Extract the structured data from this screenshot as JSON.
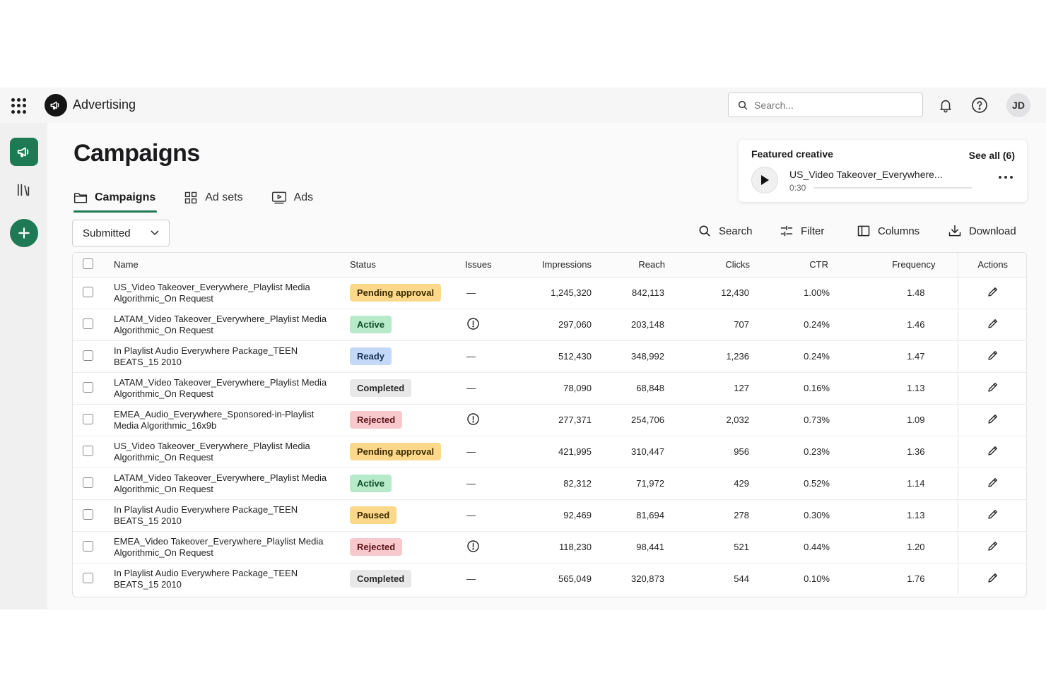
{
  "app": {
    "name": "Advertising"
  },
  "header": {
    "search_placeholder": "Search...",
    "avatar_initials": "JD"
  },
  "page": {
    "title": "Campaigns"
  },
  "tabs": [
    {
      "label": "Campaigns",
      "icon": "folder-icon",
      "active": true
    },
    {
      "label": "Ad sets",
      "icon": "grid-icon",
      "active": false
    },
    {
      "label": "Ads",
      "icon": "play-box-icon",
      "active": false
    }
  ],
  "filter": {
    "selected": "Submitted"
  },
  "toolbar": {
    "search": "Search",
    "filter": "Filter",
    "columns": "Columns",
    "download": "Download"
  },
  "featured": {
    "title": "Featured creative",
    "see_all": "See all (6)",
    "name": "US_Video Takeover_Everywhere...",
    "duration": "0:30"
  },
  "table": {
    "columns": [
      "Name",
      "Status",
      "Issues",
      "Impressions",
      "Reach",
      "Clicks",
      "CTR",
      "Frequency",
      "Actions"
    ],
    "status_colors": {
      "Pending approval": {
        "bg": "#fcd88a",
        "fg": "#3a2a00"
      },
      "Active": {
        "bg": "#b6eac8",
        "fg": "#0f4d2a"
      },
      "Ready": {
        "bg": "#c4d8f7",
        "fg": "#1c3559"
      },
      "Completed": {
        "bg": "#e8e8e8",
        "fg": "#2a2a2a"
      },
      "Rejected": {
        "bg": "#f8c9cc",
        "fg": "#5c1218"
      },
      "Paused": {
        "bg": "#fcd88a",
        "fg": "#3a2a00"
      }
    },
    "rows": [
      {
        "name": "US_Video Takeover_Everywhere_Playlist Media Algorithmic_On Request",
        "status": "Pending approval",
        "issue": "—",
        "impressions": "1,245,320",
        "reach": "842,113",
        "clicks": "12,430",
        "ctr": "1.00%",
        "frequency": "1.48"
      },
      {
        "name": "LATAM_Video Takeover_Everywhere_Playlist Media Algorithmic_On Request",
        "status": "Active",
        "issue": "!",
        "impressions": "297,060",
        "reach": "203,148",
        "clicks": "707",
        "ctr": "0.24%",
        "frequency": "1.46"
      },
      {
        "name": "In Playlist Audio Everywhere Package_TEEN BEATS_15 2010",
        "status": "Ready",
        "issue": "—",
        "impressions": "512,430",
        "reach": "348,992",
        "clicks": "1,236",
        "ctr": "0.24%",
        "frequency": "1.47"
      },
      {
        "name": "LATAM_Video Takeover_Everywhere_Playlist Media Algorithmic_On Request",
        "status": "Completed",
        "issue": "—",
        "impressions": "78,090",
        "reach": "68,848",
        "clicks": "127",
        "ctr": "0.16%",
        "frequency": "1.13"
      },
      {
        "name": "EMEA_Audio_Everywhere_Sponsored-in-Playlist Media Algorithmic_16x9b",
        "status": "Rejected",
        "issue": "!",
        "impressions": "277,371",
        "reach": "254,706",
        "clicks": "2,032",
        "ctr": "0.73%",
        "frequency": "1.09"
      },
      {
        "name": "US_Video Takeover_Everywhere_Playlist Media Algorithmic_On Request",
        "status": "Pending approval",
        "issue": "—",
        "impressions": "421,995",
        "reach": "310,447",
        "clicks": "956",
        "ctr": "0.23%",
        "frequency": "1.36"
      },
      {
        "name": "LATAM_Video Takeover_Everywhere_Playlist Media Algorithmic_On Request",
        "status": "Active",
        "issue": "—",
        "impressions": "82,312",
        "reach": "71,972",
        "clicks": "429",
        "ctr": "0.52%",
        "frequency": "1.14"
      },
      {
        "name": "In Playlist Audio Everywhere Package_TEEN BEATS_15 2010",
        "status": "Paused",
        "issue": "—",
        "impressions": "92,469",
        "reach": "81,694",
        "clicks": "278",
        "ctr": "0.30%",
        "frequency": "1.13"
      },
      {
        "name": "EMEA_Video Takeover_Everywhere_Playlist Media Algorithmic_On Request",
        "status": "Rejected",
        "issue": "!",
        "impressions": "118,230",
        "reach": "98,441",
        "clicks": "521",
        "ctr": "0.44%",
        "frequency": "1.20"
      },
      {
        "name": "In Playlist Audio Everywhere Package_TEEN BEATS_15 2010",
        "status": "Completed",
        "issue": "—",
        "impressions": "565,049",
        "reach": "320,873",
        "clicks": "544",
        "ctr": "0.10%",
        "frequency": "1.76"
      }
    ]
  }
}
